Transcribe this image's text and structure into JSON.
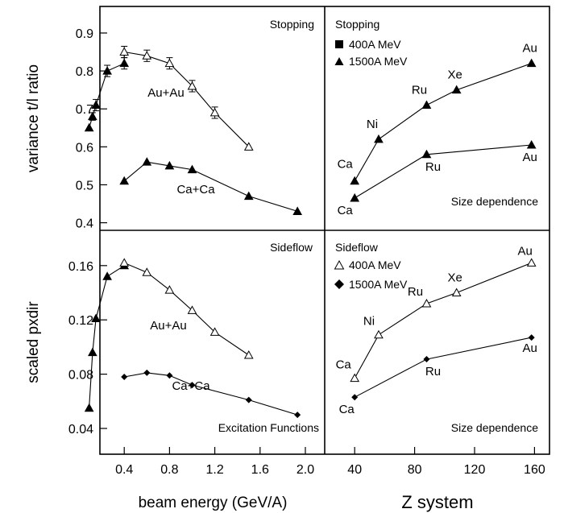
{
  "chart_data": [
    {
      "id": "stopping-excitation",
      "type": "line",
      "annotation": "Stopping",
      "ylabel": "variance t/l ratio",
      "xlim": [
        0,
        2.0
      ],
      "ylim": [
        0.38,
        0.97
      ],
      "yticks": [
        0.4,
        0.5,
        0.6,
        0.7,
        0.8,
        0.9
      ],
      "series": [
        {
          "label": "Au+Au",
          "x": [
            0.09,
            0.12,
            0.15,
            0.25,
            0.4,
            0.4,
            0.6,
            0.8,
            1.0,
            1.2,
            1.5
          ],
          "y": [
            0.65,
            0.68,
            0.71,
            0.8,
            0.82,
            0.85,
            0.84,
            0.82,
            0.76,
            0.69,
            0.6
          ],
          "err": [
            0,
            0.01,
            0.015,
            0.015,
            0.015,
            0.015,
            0.015,
            0.015,
            0.015,
            0.015,
            0
          ],
          "markers": [
            "tri-filled",
            "tri-filled",
            "tri-filled",
            "tri-filled",
            "tri-filled",
            "tri-open",
            "tri-open",
            "tri-open",
            "tri-open",
            "tri-open",
            "tri-open"
          ]
        },
        {
          "label": "Ca+Ca",
          "x": [
            0.4,
            0.6,
            0.8,
            1.0,
            1.5,
            1.93
          ],
          "y": [
            0.51,
            0.56,
            0.55,
            0.54,
            0.47,
            0.43
          ],
          "markers": [
            "tri-filled",
            "tri-filled",
            "tri-filled",
            "tri-filled",
            "tri-filled",
            "tri-filled"
          ]
        }
      ]
    },
    {
      "id": "stopping-size",
      "type": "line",
      "annotation": "Size dependence",
      "xlim": [
        20,
        170
      ],
      "ylim": [
        0.38,
        0.97
      ],
      "legend_title": "Stopping",
      "legend": [
        {
          "marker": "square",
          "label": "400A MeV"
        },
        {
          "marker": "tri-filled",
          "label": "1500A MeV"
        }
      ],
      "series": [
        {
          "label": "1500A MeV",
          "x": [
            40,
            56,
            88,
            108,
            158
          ],
          "y": [
            0.51,
            0.62,
            0.71,
            0.75,
            0.82
          ],
          "point_labels": [
            "Ca",
            "Ni",
            "Ru",
            "Xe",
            "Au"
          ],
          "markers": [
            "tri-filled",
            "tri-filled",
            "tri-filled",
            "tri-filled",
            "tri-filled"
          ]
        },
        {
          "label": "400A MeV",
          "x": [
            40,
            88,
            158
          ],
          "y": [
            0.465,
            0.58,
            0.605
          ],
          "point_labels": [
            "Ca",
            "Ru",
            "Au"
          ],
          "markers": [
            "tri-filled",
            "tri-filled",
            "tri-filled"
          ]
        }
      ]
    },
    {
      "id": "sideflow-excitation",
      "type": "line",
      "annotation": "Sideflow",
      "ylabel": "scaled pxdir",
      "xlabel": "beam energy (GeV/A)",
      "xlim": [
        0,
        2.0
      ],
      "xticks": [
        "0.4",
        "0.8",
        "1.2",
        "1.6",
        "2.0"
      ],
      "ylim": [
        0.021,
        0.186
      ],
      "yticks": [
        0.04,
        0.08,
        0.12,
        0.16
      ],
      "series": [
        {
          "label": "Au+Au",
          "x": [
            0.09,
            0.12,
            0.15,
            0.25,
            0.4,
            0.4,
            0.6,
            0.8,
            1.0,
            1.2,
            1.5
          ],
          "y": [
            0.055,
            0.096,
            0.121,
            0.152,
            0.16,
            0.162,
            0.155,
            0.142,
            0.127,
            0.111,
            0.094
          ],
          "markers": [
            "tri-filled",
            "tri-filled",
            "tri-filled",
            "tri-filled",
            "tri-filled",
            "tri-open",
            "tri-open",
            "tri-open",
            "tri-open",
            "tri-open",
            "tri-open"
          ]
        },
        {
          "label": "Ca+Ca",
          "x": [
            0.4,
            0.6,
            0.8,
            1.0,
            1.5,
            1.93
          ],
          "y": [
            0.078,
            0.081,
            0.079,
            0.072,
            0.061,
            0.05
          ],
          "markers": [
            "diamond",
            "diamond",
            "diamond",
            "diamond",
            "diamond",
            "diamond"
          ]
        }
      ],
      "note": "Excitation Functions"
    },
    {
      "id": "sideflow-size",
      "type": "line",
      "annotation": "Size dependence",
      "xlabel": "Z system",
      "xlim": [
        20,
        170
      ],
      "xticks": [
        "40",
        "80",
        "120",
        "160"
      ],
      "ylim": [
        0.021,
        0.186
      ],
      "legend_title": "Sideflow",
      "legend": [
        {
          "marker": "tri-open",
          "label": "400A MeV"
        },
        {
          "marker": "diamond",
          "label": "1500A MeV"
        }
      ],
      "series": [
        {
          "label": "400A MeV",
          "x": [
            40,
            56,
            88,
            108,
            158
          ],
          "y": [
            0.077,
            0.109,
            0.132,
            0.14,
            0.162
          ],
          "point_labels": [
            "Ca",
            "Ni",
            "Ru",
            "Xe",
            "Au"
          ],
          "markers": [
            "tri-open",
            "tri-open",
            "tri-open",
            "tri-open",
            "tri-open"
          ]
        },
        {
          "label": "1500A MeV",
          "x": [
            40,
            88,
            158
          ],
          "y": [
            0.063,
            0.091,
            0.107
          ],
          "point_labels": [
            "Ca",
            "Ru",
            "Au"
          ],
          "markers": [
            "diamond",
            "diamond",
            "diamond"
          ]
        }
      ]
    }
  ]
}
